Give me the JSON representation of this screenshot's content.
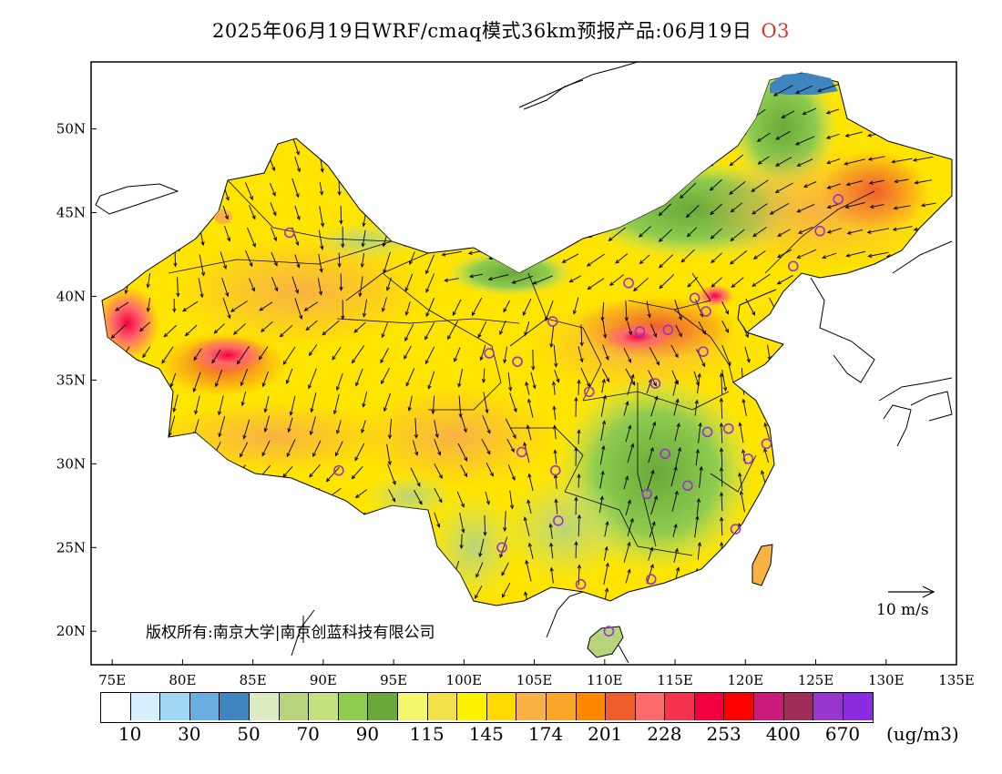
{
  "title": {
    "main": "2025年06月19日WRF/cmaq模式36km预报产品:06月19日",
    "species": "O3",
    "species_color": "#e03030"
  },
  "axes": {
    "x_ticks": [
      "75E",
      "80E",
      "85E",
      "90E",
      "95E",
      "100E",
      "105E",
      "110E",
      "115E",
      "120E",
      "125E",
      "130E",
      "135E"
    ],
    "y_ticks": [
      "20N",
      "25N",
      "30N",
      "35N",
      "40N",
      "45N",
      "50N"
    ],
    "lon_range": [
      73.5,
      135
    ],
    "lat_range": [
      18,
      54
    ]
  },
  "copyright": "版权所有:南京大学|南京创蓝科技有限公司",
  "scale_vector": {
    "label": "10 m/s"
  },
  "legend": {
    "colors": [
      "#ffffff",
      "#d4efff",
      "#9fd8f5",
      "#6aaee0",
      "#3f86c0",
      "#dcecc0",
      "#b8d47a",
      "#c4e17c",
      "#8ecb4e",
      "#6aa83a",
      "#f4f76c",
      "#f2e24a",
      "#fff200",
      "#ffd900",
      "#f8b244",
      "#faa628",
      "#ff8800",
      "#f05e2c",
      "#ff6a6a",
      "#f4344e",
      "#f20040",
      "#fe0000",
      "#cc1a78",
      "#a02c5a",
      "#9a36d0",
      "#8a2be2"
    ],
    "labels": [
      "10",
      "30",
      "50",
      "70",
      "90",
      "115",
      "145",
      "174",
      "201",
      "228",
      "253",
      "400",
      "670"
    ],
    "unit": "(ug/m3)"
  },
  "stations": [
    [
      87.6,
      43.8
    ],
    [
      91.1,
      29.6
    ],
    [
      101.8,
      36.6
    ],
    [
      103.8,
      36.1
    ],
    [
      106.3,
      38.5
    ],
    [
      111.7,
      40.8
    ],
    [
      104.1,
      30.7
    ],
    [
      106.5,
      29.6
    ],
    [
      106.7,
      26.6
    ],
    [
      102.7,
      25.0
    ],
    [
      108.3,
      22.8
    ],
    [
      110.3,
      20.0
    ],
    [
      108.9,
      34.3
    ],
    [
      112.5,
      37.9
    ],
    [
      114.5,
      38.0
    ],
    [
      116.4,
      39.9
    ],
    [
      117.2,
      39.1
    ],
    [
      117.0,
      36.7
    ],
    [
      113.6,
      34.8
    ],
    [
      114.3,
      30.6
    ],
    [
      113.0,
      28.2
    ],
    [
      115.9,
      28.7
    ],
    [
      113.3,
      23.1
    ],
    [
      119.3,
      26.1
    ],
    [
      120.2,
      30.3
    ],
    [
      118.8,
      32.1
    ],
    [
      117.3,
      31.9
    ],
    [
      121.5,
      31.2
    ],
    [
      123.4,
      41.8
    ],
    [
      125.3,
      43.9
    ],
    [
      126.6,
      45.8
    ]
  ]
}
